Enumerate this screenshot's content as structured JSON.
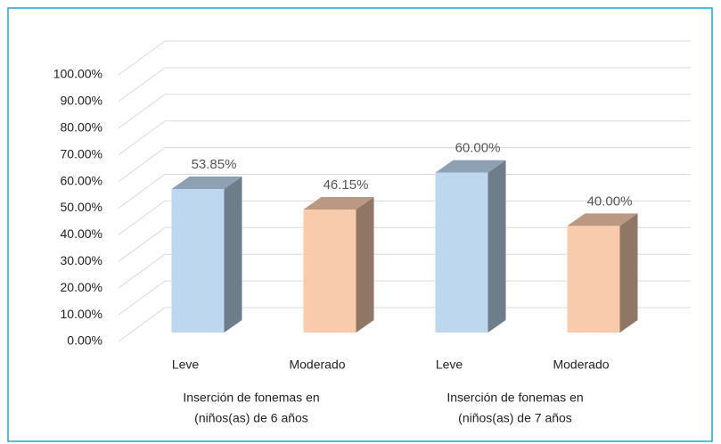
{
  "chart_data": {
    "type": "bar3d",
    "categories": [
      "Leve",
      "Moderado",
      "Leve",
      "Moderado"
    ],
    "values": [
      53.85,
      46.15,
      60.0,
      40.0
    ],
    "value_labels": [
      "53.85%",
      "46.15%",
      "60.00%",
      "40.00%"
    ],
    "colors": [
      "#bdd7ee",
      "#f8cbad",
      "#bdd7ee",
      "#f8cbad"
    ],
    "group_labels": [
      [
        "Inserción de fonemas en",
        "(niños(as) de 6 años"
      ],
      [
        "Inserción de fonemas en",
        "(niños(as) de 7 años"
      ]
    ],
    "ylim": [
      0,
      100
    ],
    "yticks": [
      {
        "value": 0,
        "label": "0.00%"
      },
      {
        "value": 10,
        "label": "10.00%"
      },
      {
        "value": 20,
        "label": "20.00%"
      },
      {
        "value": 30,
        "label": "30.00%"
      },
      {
        "value": 40,
        "label": "40.00%"
      },
      {
        "value": 50,
        "label": "50.00%"
      },
      {
        "value": 60,
        "label": "60.00%"
      },
      {
        "value": 70,
        "label": "70.00%"
      },
      {
        "value": 80,
        "label": "80.00%"
      },
      {
        "value": 90,
        "label": "90.00%"
      },
      {
        "value": 100,
        "label": "100.00%"
      }
    ],
    "grid": true
  }
}
